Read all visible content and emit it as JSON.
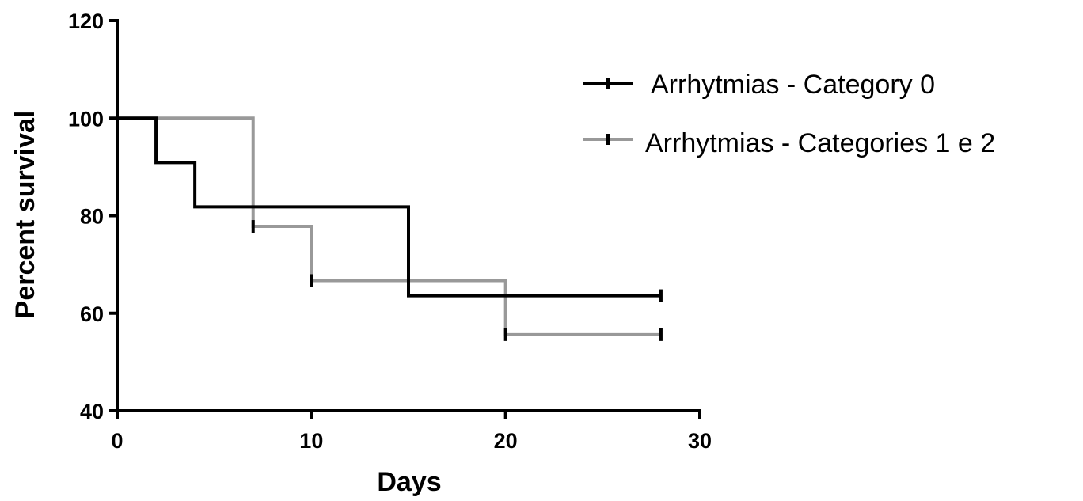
{
  "chart_data": {
    "type": "line",
    "subtype": "step-survival",
    "xlabel": "Days",
    "ylabel": "Percent survival",
    "xlim": [
      0,
      30
    ],
    "ylim": [
      40,
      120
    ],
    "xticks": [
      0,
      10,
      20,
      30
    ],
    "yticks": [
      40,
      60,
      80,
      100,
      120
    ],
    "xtick_labels": [
      "0",
      "10",
      "20",
      "30"
    ],
    "ytick_labels": [
      "40",
      "60",
      "80",
      "100",
      "120"
    ],
    "grid": false,
    "legend_position": "top-right",
    "series": [
      {
        "name": "Arrhytmias - Category 0",
        "color": "#000000",
        "steps": [
          [
            0,
            100
          ],
          [
            2,
            90.9
          ],
          [
            4,
            81.8
          ],
          [
            15,
            63.6
          ],
          [
            28,
            63.6
          ]
        ],
        "censored": [
          [
            28,
            63.6
          ]
        ]
      },
      {
        "name": "Arrhytmias - Categories 1 e 2",
        "color": "#999999",
        "steps": [
          [
            0,
            100
          ],
          [
            7,
            77.8
          ],
          [
            10,
            66.7
          ],
          [
            20,
            55.6
          ],
          [
            28,
            55.6
          ]
        ],
        "censored": [
          [
            7,
            77.8
          ],
          [
            10,
            66.7
          ],
          [
            20,
            55.6
          ],
          [
            28,
            55.6
          ]
        ]
      }
    ]
  }
}
